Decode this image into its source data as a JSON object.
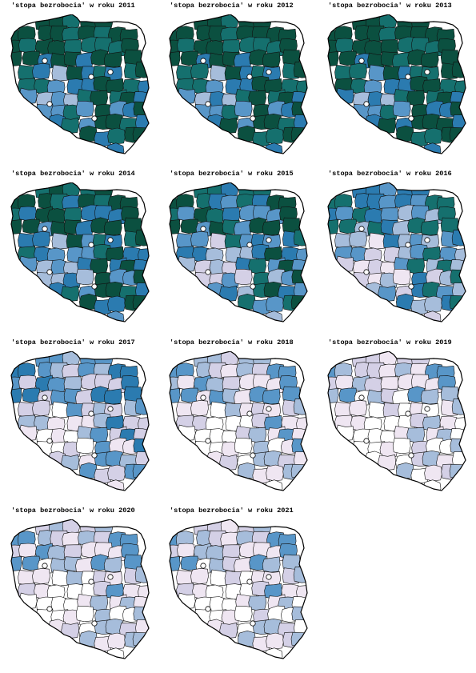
{
  "palette": [
    "#ffffff",
    "#efe6f2",
    "#d4d0e6",
    "#a6bddb",
    "#5896c8",
    "#2b7bb0",
    "#15706e",
    "#0b5040"
  ],
  "panels": [
    {
      "title": "'stopa bezrobocia' w roku 2011",
      "level": 0.86
    },
    {
      "title": "'stopa bezrobocia' w roku 2012",
      "level": 0.88
    },
    {
      "title": "'stopa bezrobocia' w roku 2013",
      "level": 0.9
    },
    {
      "title": "'stopa bezrobocia' w roku 2014",
      "level": 0.8
    },
    {
      "title": "'stopa bezrobocia' w roku 2015",
      "level": 0.7
    },
    {
      "title": "'stopa bezrobocia' w roku 2016",
      "level": 0.58
    },
    {
      "title": "'stopa bezrobocia' w roku 2017",
      "level": 0.44
    },
    {
      "title": "'stopa bezrobocia' w roku 2018",
      "level": 0.32
    },
    {
      "title": "'stopa bezrobocia' w roku 2019",
      "level": 0.24
    },
    {
      "title": "'stopa bezrobocia' w roku 2020",
      "level": 0.3
    },
    {
      "title": "'stopa bezrobocia' w roku 2021",
      "level": 0.28
    }
  ]
}
